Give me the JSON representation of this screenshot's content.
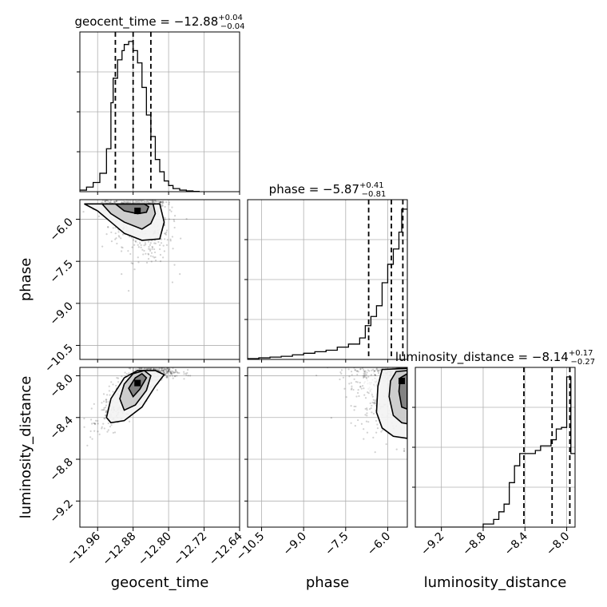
{
  "chart_data": {
    "type": "corner",
    "parameters": [
      {
        "name": "geocent_time",
        "xlabel": "geocent_time",
        "title": {
          "prefix": "geocent_time = ",
          "median": "−12.88",
          "plus": "+0.04",
          "minus": "−0.04"
        },
        "range": [
          -13.0,
          -12.64
        ],
        "ticks": [
          -12.96,
          -12.88,
          -12.8,
          -12.72,
          -12.64
        ],
        "tick_labels": [
          "−12.96",
          "−12.88",
          "−12.80",
          "−12.72",
          "−12.64"
        ],
        "quantiles": [
          -12.92,
          -12.88,
          -12.84
        ],
        "hist_bins": [
          -13.0,
          -12.985,
          -12.97,
          -12.955,
          -12.94,
          -12.93,
          -12.925,
          -12.915,
          -12.905,
          -12.9,
          -12.89,
          -12.88,
          -12.87,
          -12.86,
          -12.85,
          -12.84,
          -12.83,
          -12.82,
          -12.81,
          -12.8,
          -12.79,
          -12.775,
          -12.76,
          -12.745,
          -12.73
        ],
        "hist_heights": [
          0.01,
          0.03,
          0.06,
          0.12,
          0.28,
          0.58,
          0.74,
          0.86,
          0.92,
          0.96,
          0.98,
          0.92,
          0.84,
          0.68,
          0.5,
          0.36,
          0.21,
          0.13,
          0.07,
          0.04,
          0.02,
          0.01,
          0.005,
          0.002
        ]
      },
      {
        "name": "phase",
        "xlabel": "phase",
        "ylabel": "phase",
        "title": {
          "prefix": "phase = ",
          "median": "−5.87",
          "plus": "+0.41",
          "minus": "−0.81"
        },
        "range": [
          -11.0,
          -5.3
        ],
        "ticks": [
          -10.5,
          -9.0,
          -7.5,
          -6.0
        ],
        "tick_labels": [
          "−10.5",
          "−9.0",
          "−7.5",
          "−6.0"
        ],
        "quantiles": [
          -6.68,
          -5.87,
          -5.46
        ],
        "hist_bins": [
          -11.0,
          -10.6,
          -10.2,
          -9.8,
          -9.4,
          -9.0,
          -8.6,
          -8.2,
          -7.8,
          -7.4,
          -7.0,
          -6.8,
          -6.6,
          -6.4,
          -6.2,
          -6.0,
          -5.8,
          -5.6,
          -5.5,
          -5.4,
          -5.3
        ],
        "hist_heights": [
          0.005,
          0.01,
          0.015,
          0.02,
          0.03,
          0.04,
          0.05,
          0.06,
          0.08,
          0.1,
          0.14,
          0.22,
          0.28,
          0.35,
          0.5,
          0.62,
          0.72,
          0.83,
          0.98,
          0.98
        ]
      },
      {
        "name": "luminosity_distance",
        "xlabel": "luminosity_distance",
        "ylabel": "luminosity_distance",
        "title": {
          "prefix": "luminosity_distance = ",
          "median": "−8.14",
          "plus": "+0.17",
          "minus": "−0.27"
        },
        "range": [
          -9.45,
          -7.92
        ],
        "ticks": [
          -9.2,
          -8.8,
          -8.4,
          -8.0
        ],
        "tick_labels": [
          "−9.2",
          "−8.8",
          "−8.4",
          "−8.0"
        ],
        "quantiles": [
          -8.41,
          -8.14,
          -7.97
        ],
        "hist_bins": [
          -9.45,
          -9.3,
          -9.2,
          -9.1,
          -9.0,
          -8.9,
          -8.8,
          -8.7,
          -8.65,
          -8.6,
          -8.55,
          -8.5,
          -8.45,
          -8.4,
          -8.35,
          -8.3,
          -8.25,
          -8.2,
          -8.15,
          -8.1,
          -8.05,
          -8.0,
          -7.96,
          -7.92
        ],
        "hist_heights": [
          0.0,
          0.0,
          0.0,
          0.0,
          0.0,
          0.0,
          0.02,
          0.05,
          0.1,
          0.15,
          0.29,
          0.4,
          0.48,
          0.48,
          0.48,
          0.5,
          0.53,
          0.53,
          0.57,
          0.64,
          0.65,
          0.98,
          0.48
        ]
      }
    ],
    "pairs": [
      {
        "x_param": "geocent_time",
        "y_param": "phase",
        "peak": [
          -12.87,
          -5.7
        ],
        "spread": [
          0.035,
          0.8
        ],
        "correlation": -0.35,
        "contours": [
          [
            [
              -12.92,
              -5.45
            ],
            [
              -12.9,
              -5.7
            ],
            [
              -12.87,
              -5.8
            ],
            [
              -12.85,
              -5.75
            ],
            [
              -12.845,
              -5.55
            ],
            [
              -12.855,
              -5.45
            ]
          ],
          [
            [
              -12.95,
              -5.45
            ],
            [
              -12.93,
              -5.8
            ],
            [
              -12.9,
              -6.1
            ],
            [
              -12.86,
              -6.35
            ],
            [
              -12.84,
              -6.15
            ],
            [
              -12.83,
              -5.8
            ],
            [
              -12.835,
              -5.45
            ]
          ],
          [
            [
              -12.99,
              -5.45
            ],
            [
              -12.96,
              -5.7
            ],
            [
              -12.93,
              -6.1
            ],
            [
              -12.9,
              -6.5
            ],
            [
              -12.86,
              -6.75
            ],
            [
              -12.82,
              -6.7
            ],
            [
              -12.81,
              -6.1
            ],
            [
              -12.82,
              -5.45
            ]
          ]
        ]
      },
      {
        "x_param": "geocent_time",
        "y_param": "luminosity_distance",
        "peak": [
          -12.87,
          -8.07
        ],
        "spread": [
          0.04,
          0.18
        ],
        "correlation": 0.85,
        "contours": [
          [
            [
              -12.89,
              -8.12
            ],
            [
              -12.875,
              -8.02
            ],
            [
              -12.86,
              -7.98
            ],
            [
              -12.85,
              -8.02
            ],
            [
              -12.865,
              -8.13
            ],
            [
              -12.88,
              -8.2
            ]
          ],
          [
            [
              -12.91,
              -8.22
            ],
            [
              -12.9,
              -8.08
            ],
            [
              -12.88,
              -7.98
            ],
            [
              -12.855,
              -7.95
            ],
            [
              -12.84,
              -8.0
            ],
            [
              -12.85,
              -8.14
            ],
            [
              -12.875,
              -8.28
            ],
            [
              -12.9,
              -8.33
            ]
          ],
          [
            [
              -12.94,
              -8.4
            ],
            [
              -12.93,
              -8.22
            ],
            [
              -12.9,
              -8.02
            ],
            [
              -12.87,
              -7.95
            ],
            [
              -12.83,
              -7.95
            ],
            [
              -12.81,
              -7.99
            ],
            [
              -12.83,
              -8.1
            ],
            [
              -12.86,
              -8.3
            ],
            [
              -12.9,
              -8.43
            ],
            [
              -12.93,
              -8.45
            ]
          ]
        ]
      },
      {
        "x_param": "phase",
        "y_param": "luminosity_distance",
        "peak": [
          -5.5,
          -8.05
        ],
        "spread": [
          0.9,
          0.22
        ],
        "correlation": 0.1,
        "contours": [
          [
            [
              -5.3,
              -7.98
            ],
            [
              -5.55,
              -8.02
            ],
            [
              -5.6,
              -8.15
            ],
            [
              -5.5,
              -8.3
            ],
            [
              -5.3,
              -8.32
            ]
          ],
          [
            [
              -5.3,
              -7.95
            ],
            [
              -5.7,
              -7.96
            ],
            [
              -5.9,
              -8.05
            ],
            [
              -5.95,
              -8.2
            ],
            [
              -5.8,
              -8.38
            ],
            [
              -5.5,
              -8.45
            ],
            [
              -5.3,
              -8.46
            ]
          ],
          [
            [
              -5.3,
              -7.93
            ],
            [
              -6.2,
              -7.94
            ],
            [
              -6.35,
              -8.1
            ],
            [
              -6.4,
              -8.35
            ],
            [
              -6.2,
              -8.5
            ],
            [
              -5.8,
              -8.58
            ],
            [
              -5.3,
              -8.6
            ]
          ]
        ]
      }
    ],
    "grid": true
  }
}
